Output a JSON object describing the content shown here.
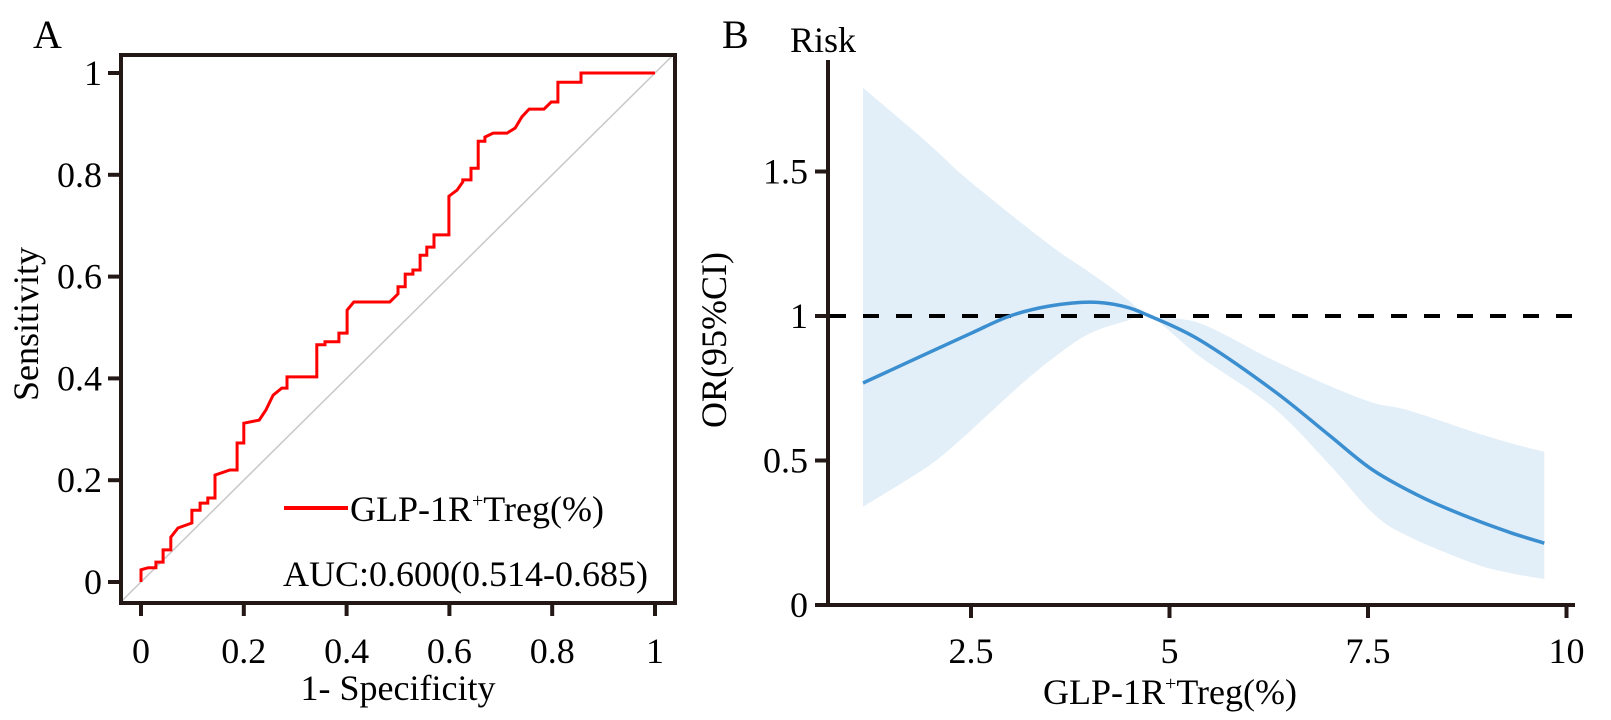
{
  "figure": {
    "panels": [
      "A",
      "B"
    ]
  },
  "chart_data": [
    {
      "panel": "A",
      "type": "line",
      "subtype": "roc",
      "title": "",
      "xlabel": "1- Specificity",
      "ylabel": "Sensitivity",
      "xlim": [
        0,
        1
      ],
      "ylim": [
        0,
        1
      ],
      "xticks": [
        0,
        0.2,
        0.4,
        0.6,
        0.8,
        1
      ],
      "xtick_labels": [
        "0",
        "0.2",
        "0.4",
        "0.6",
        "0.8",
        "1"
      ],
      "yticks": [
        0,
        0.2,
        0.4,
        0.6,
        0.8,
        1
      ],
      "ytick_labels": [
        "0",
        "0.2",
        "0.4",
        "0.6",
        "0.8",
        "1"
      ],
      "grid": false,
      "legend": {
        "placement": "bottom-right",
        "entries": [
          {
            "label_main": "GLP-1R",
            "label_sup": "+",
            "label_rest": "Treg(%)",
            "color": "#ff0000"
          }
        ]
      },
      "annotation": "AUC:0.600(0.514-0.685)",
      "reference_line": {
        "x": [
          0,
          1
        ],
        "y": [
          0,
          1
        ],
        "color": "#c8c8c8"
      },
      "series": [
        {
          "name": "GLP-1R+Treg(%)",
          "color": "#ff0000",
          "x": [
            0,
            0,
            0.014,
            0.029,
            0.029,
            0.043,
            0.043,
            0.058,
            0.058,
            0.072,
            0.099,
            0.099,
            0.115,
            0.115,
            0.13,
            0.13,
            0.144,
            0.144,
            0.173,
            0.173,
            0.187,
            0.187,
            0.2,
            0.2,
            0.23,
            0.23,
            0.243,
            0.243,
            0.257,
            0.257,
            0.274,
            0.284,
            0.284,
            0.313,
            0.313,
            0.342,
            0.342,
            0.358,
            0.358,
            0.385,
            0.385,
            0.401,
            0.401,
            0.414,
            0.484,
            0.484,
            0.5,
            0.5,
            0.514,
            0.514,
            0.529,
            0.529,
            0.543,
            0.543,
            0.556,
            0.556,
            0.57,
            0.57,
            0.599,
            0.599,
            0.615,
            0.626,
            0.626,
            0.642,
            0.642,
            0.656,
            0.656,
            0.669,
            0.669,
            0.685,
            0.712,
            0.728,
            0.741,
            0.755,
            0.784,
            0.798,
            0.811,
            0.811,
            0.856,
            0.856,
            1
          ],
          "y": [
            0,
            0.024,
            0.028,
            0.028,
            0.039,
            0.039,
            0.063,
            0.063,
            0.088,
            0.106,
            0.116,
            0.141,
            0.141,
            0.155,
            0.155,
            0.165,
            0.165,
            0.21,
            0.22,
            0.22,
            0.22,
            0.273,
            0.273,
            0.312,
            0.318,
            0.318,
            0.338,
            0.338,
            0.367,
            0.367,
            0.381,
            0.381,
            0.403,
            0.403,
            0.403,
            0.403,
            0.466,
            0.466,
            0.472,
            0.472,
            0.489,
            0.489,
            0.534,
            0.55,
            0.55,
            0.55,
            0.566,
            0.58,
            0.58,
            0.605,
            0.605,
            0.613,
            0.613,
            0.642,
            0.642,
            0.658,
            0.658,
            0.682,
            0.682,
            0.758,
            0.77,
            0.786,
            0.79,
            0.79,
            0.813,
            0.813,
            0.866,
            0.866,
            0.874,
            0.882,
            0.882,
            0.892,
            0.914,
            0.929,
            0.929,
            0.943,
            0.943,
            0.982,
            0.982,
            1.0,
            1.0
          ]
        }
      ]
    },
    {
      "panel": "B",
      "type": "area",
      "subtype": "restricted-cubic-spline",
      "title": "Risk",
      "xlabel_main": "GLP-1R",
      "xlabel_sup": "+",
      "xlabel_rest": "Treg(%)",
      "ylabel": "OR(95%CI)",
      "xlim": [
        0.7,
        10.1
      ],
      "ylim": [
        0,
        1.9
      ],
      "xticks": [
        2.5,
        5,
        7.5,
        10
      ],
      "xtick_labels": [
        "2.5",
        "5",
        "7.5",
        "10"
      ],
      "yticks": [
        0,
        0.5,
        1,
        1.5
      ],
      "ytick_labels": [
        "0",
        "0.5",
        "1",
        "1.5"
      ],
      "grid": false,
      "reference_line": {
        "y": 1,
        "style": "dashed",
        "color": "#000000"
      },
      "series": [
        {
          "name": "OR",
          "color": "#3b8fd0",
          "x": [
            1.14,
            1.95,
            2.5,
            2.99,
            3.5,
            4.0,
            4.4,
            4.75,
            5.38,
            6.3,
            7.0,
            7.56,
            8.2,
            8.8,
            9.3,
            9.72
          ],
          "y": [
            0.768,
            0.871,
            0.94,
            1.0,
            1.035,
            1.048,
            1.035,
            1.0,
            0.917,
            0.744,
            0.59,
            0.467,
            0.37,
            0.3,
            0.25,
            0.214
          ]
        }
      ],
      "ci_band": {
        "name": "95% CI",
        "color": "#e3eff8",
        "x": [
          1.14,
          1.95,
          2.36,
          2.78,
          3.2,
          3.62,
          4.0,
          4.46,
          4.75,
          5.38,
          6.3,
          7.0,
          7.56,
          7.99,
          8.82,
          9.3,
          9.72
        ],
        "upper": [
          1.79,
          1.6,
          1.495,
          1.4,
          1.308,
          1.22,
          1.15,
          1.06,
          1.0,
          0.975,
          0.848,
          0.76,
          0.7,
          0.675,
          0.6,
          0.56,
          0.53
        ],
        "lower": [
          0.34,
          0.478,
          0.57,
          0.675,
          0.78,
          0.872,
          0.94,
          0.983,
          1.0,
          0.86,
          0.685,
          0.49,
          0.318,
          0.24,
          0.145,
          0.11,
          0.09
        ]
      }
    }
  ]
}
